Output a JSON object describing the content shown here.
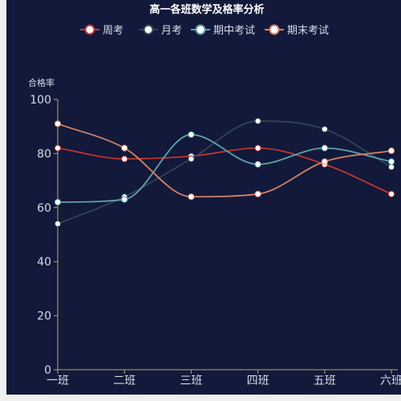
{
  "chart_data": {
    "type": "line",
    "title": "高一各班数学及格率分析",
    "ylabel": "合格率",
    "xlabel": "",
    "categories": [
      "一班",
      "二班",
      "三班",
      "四班",
      "五班",
      "六班"
    ],
    "ylim": [
      0,
      100
    ],
    "yticks": [
      0,
      20,
      40,
      60,
      80,
      100
    ],
    "grid": false,
    "smooth": true,
    "legend_position": "top-center",
    "series": [
      {
        "name": "周考",
        "color": "#c23531",
        "values": [
          82,
          78,
          79,
          82,
          76,
          65
        ]
      },
      {
        "name": "月考",
        "color": "#2f4554",
        "values": [
          54,
          64,
          78,
          92,
          89,
          75
        ]
      },
      {
        "name": "期中考试",
        "color": "#61a0a8",
        "values": [
          62,
          63,
          87,
          76,
          82,
          77
        ]
      },
      {
        "name": "期末考试",
        "color": "#d48265",
        "values": [
          91,
          82,
          64,
          65,
          77,
          81
        ]
      }
    ],
    "colors": {
      "axis": "#b8a86a",
      "text": "#d8dde8",
      "title": "#ffffff",
      "background": "#12193a"
    }
  }
}
